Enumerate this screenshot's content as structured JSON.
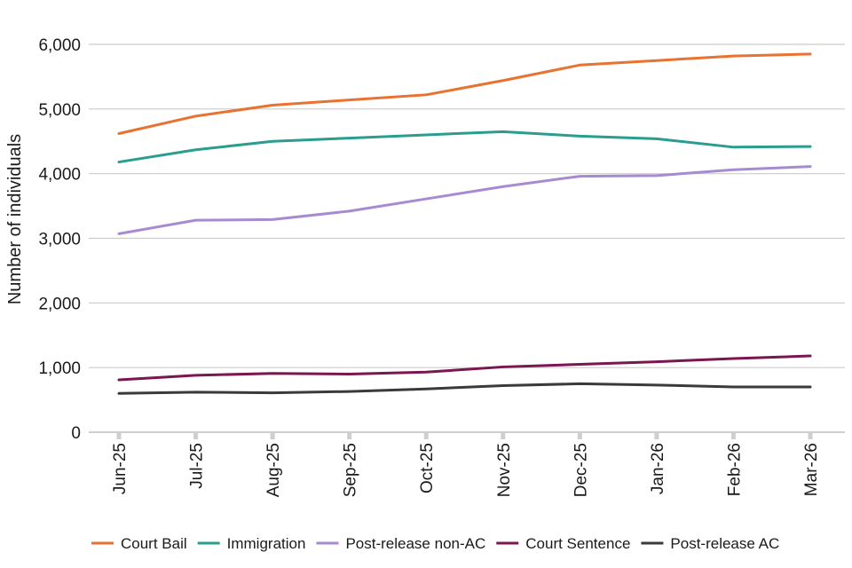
{
  "chart_data": {
    "type": "line",
    "title": "",
    "xlabel": "",
    "ylabel": "Number of individuals",
    "ylim": [
      0,
      6000
    ],
    "yticks": [
      0,
      1000,
      2000,
      3000,
      4000,
      5000,
      6000
    ],
    "ytick_labels": [
      "0",
      "1,000",
      "2,000",
      "3,000",
      "4,000",
      "5,000",
      "6,000"
    ],
    "grid": true,
    "legend_position": "bottom",
    "categories": [
      "Jun-25",
      "Jul-25",
      "Aug-25",
      "Sep-25",
      "Oct-25",
      "Nov-25",
      "Dec-25",
      "Jan-26",
      "Feb-26",
      "Mar-26"
    ],
    "series": [
      {
        "name": "Court Bail",
        "color": "#e87230",
        "values": [
          4620,
          4890,
          5060,
          5140,
          5220,
          5440,
          5680,
          5750,
          5820,
          5850
        ]
      },
      {
        "name": "Immigration",
        "color": "#2a9d8f",
        "values": [
          4180,
          4370,
          4500,
          4550,
          4600,
          4650,
          4580,
          4540,
          4410,
          4420
        ]
      },
      {
        "name": "Post-release non-AC",
        "color": "#a78bd0",
        "values": [
          3070,
          3280,
          3290,
          3420,
          3610,
          3800,
          3960,
          3970,
          4060,
          4110
        ]
      },
      {
        "name": "Court Sentence",
        "color": "#7a1650",
        "values": [
          810,
          880,
          910,
          900,
          930,
          1010,
          1050,
          1090,
          1140,
          1180
        ]
      },
      {
        "name": "Post-release AC",
        "color": "#3a3a3a",
        "values": [
          600,
          620,
          610,
          630,
          670,
          720,
          750,
          730,
          700,
          700
        ]
      }
    ]
  }
}
